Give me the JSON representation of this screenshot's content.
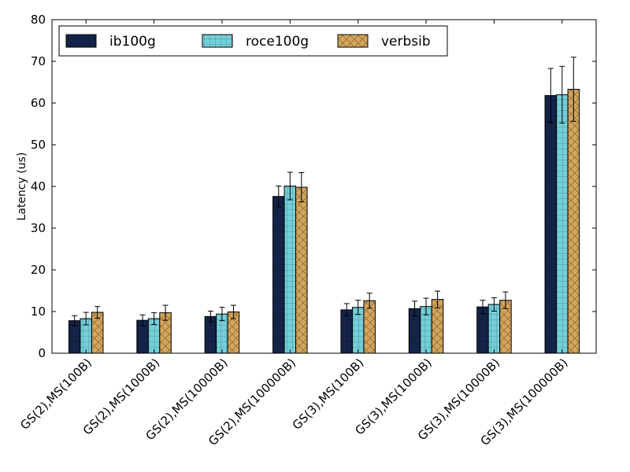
{
  "chart_data": {
    "type": "bar",
    "title": "",
    "xlabel": "",
    "ylabel": "Latency (us)",
    "ylim": [
      0,
      80
    ],
    "yticks": [
      0,
      10,
      20,
      30,
      40,
      50,
      60,
      70,
      80
    ],
    "grid": false,
    "legend_position": "top-left",
    "categories": [
      "GS(2),MS(100B)",
      "GS(2),MS(1000B)",
      "GS(2),MS(10000B)",
      "GS(2),MS(100000B)",
      "GS(3),MS(100B)",
      "GS(3),MS(1000B)",
      "GS(3),MS(10000B)",
      "GS(3),MS(100000B)"
    ],
    "series": [
      {
        "name": "ib100g",
        "color": "#14244a",
        "pattern": "grid",
        "values": [
          7.8,
          7.9,
          8.8,
          37.6,
          10.4,
          10.7,
          11.1,
          61.8
        ],
        "errors": [
          1.2,
          1.3,
          1.3,
          2.5,
          1.5,
          1.8,
          1.6,
          6.5
        ]
      },
      {
        "name": "roce100g",
        "color": "#74cfd9",
        "pattern": "grid",
        "values": [
          8.3,
          8.3,
          9.4,
          40.1,
          11.0,
          11.2,
          11.7,
          62.0
        ],
        "errors": [
          1.5,
          1.4,
          1.6,
          3.3,
          1.7,
          2.0,
          1.6,
          6.8
        ]
      },
      {
        "name": "verbsib",
        "color": "#d4a55c",
        "pattern": "crosshatch",
        "values": [
          9.8,
          9.7,
          9.9,
          39.8,
          12.6,
          12.9,
          12.7,
          63.3
        ],
        "errors": [
          1.4,
          1.8,
          1.6,
          3.5,
          1.8,
          2.0,
          2.0,
          7.7
        ]
      }
    ]
  }
}
